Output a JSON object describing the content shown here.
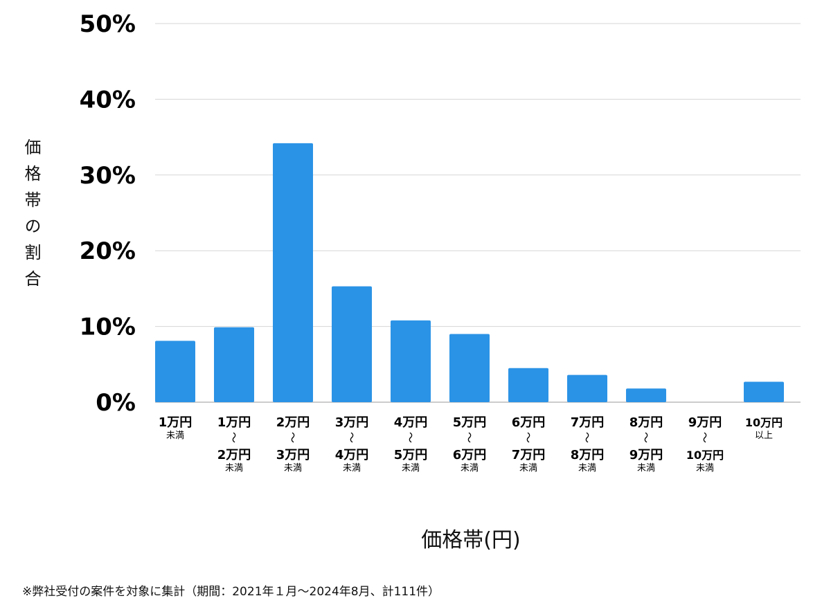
{
  "chart_data": {
    "type": "bar",
    "title": "",
    "xlabel": "価格帯(円)",
    "ylabel": "価格帯の割合",
    "ylim": [
      0,
      50
    ],
    "yticks": [
      "0%",
      "10%",
      "20%",
      "30%",
      "40%",
      "50%"
    ],
    "grid": true,
    "bar_color": "#2b93e6",
    "categories": [
      {
        "lines": [
          "1万円"
        ],
        "note": "未満"
      },
      {
        "lines": [
          "1万円",
          "～",
          "2万円"
        ],
        "note": "未満"
      },
      {
        "lines": [
          "2万円",
          "～",
          "3万円"
        ],
        "note": "未満"
      },
      {
        "lines": [
          "3万円",
          "～",
          "4万円"
        ],
        "note": "未満"
      },
      {
        "lines": [
          "4万円",
          "～",
          "5万円"
        ],
        "note": "未満"
      },
      {
        "lines": [
          "5万円",
          "～",
          "6万円"
        ],
        "note": "未満"
      },
      {
        "lines": [
          "6万円",
          "～",
          "7万円"
        ],
        "note": "未満"
      },
      {
        "lines": [
          "7万円",
          "～",
          "8万円"
        ],
        "note": "未満"
      },
      {
        "lines": [
          "8万円",
          "～",
          "9万円"
        ],
        "note": "未満"
      },
      {
        "lines": [
          "9万円",
          "～",
          "10万円"
        ],
        "note": "未満"
      },
      {
        "lines": [
          "10万円"
        ],
        "note": "以上"
      }
    ],
    "values": [
      8.1,
      9.9,
      34.2,
      15.3,
      10.8,
      9.0,
      4.5,
      3.6,
      1.8,
      0,
      2.7
    ]
  },
  "footnote": "※弊社受付の案件を対象に集計（期間：2021年１月～2024年8月、計111件）"
}
